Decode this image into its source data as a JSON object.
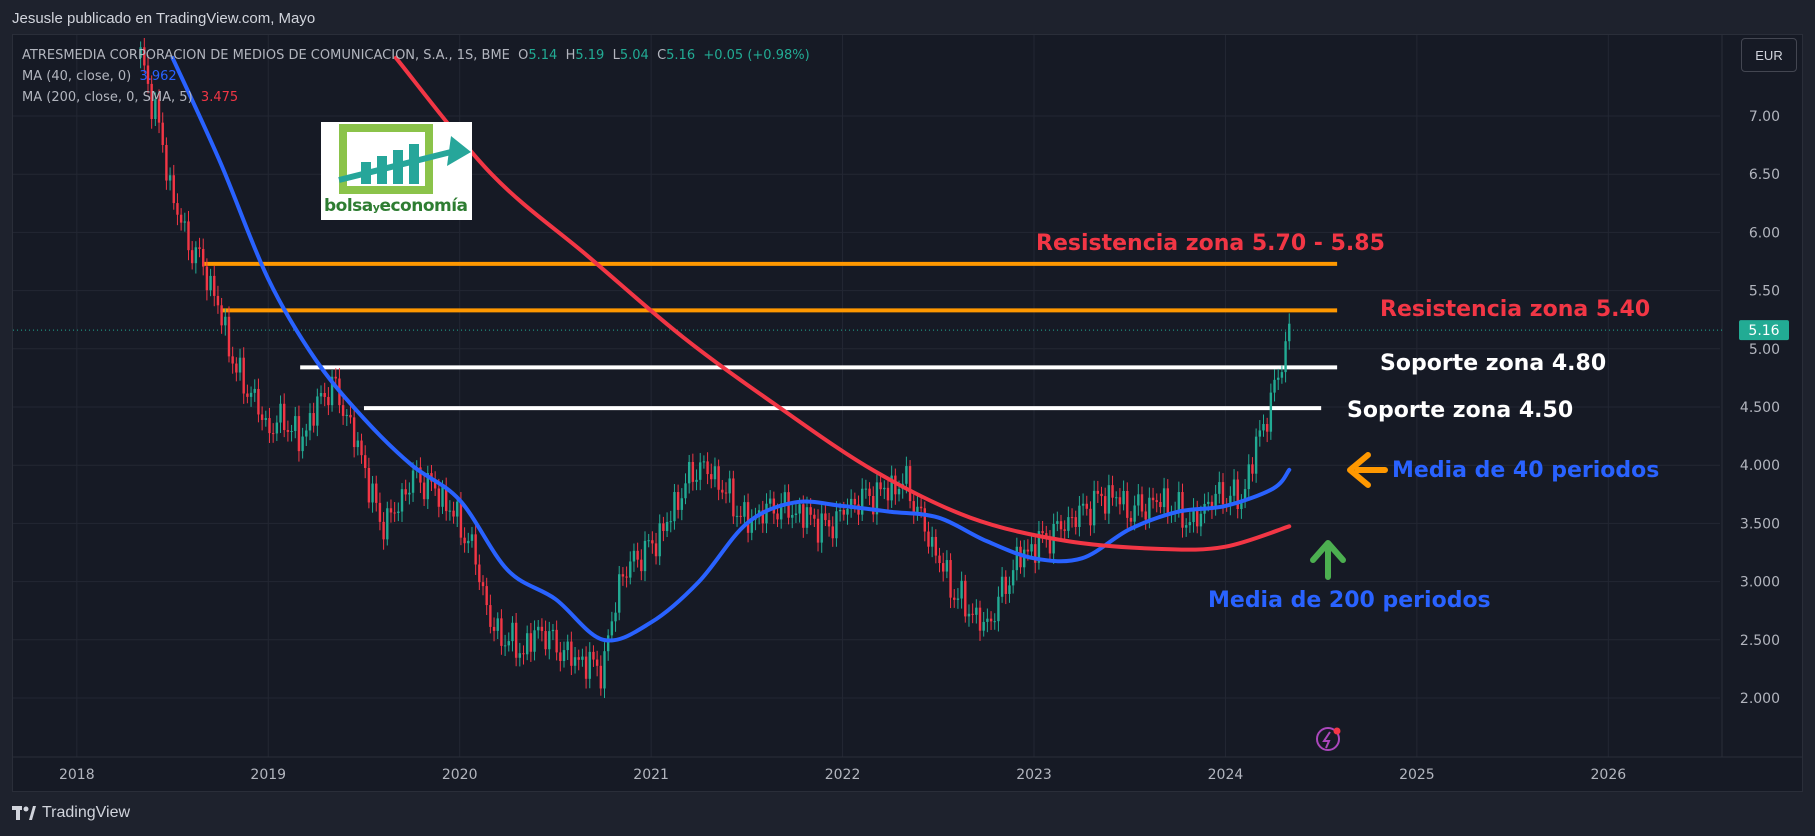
{
  "header": {
    "publisher": "Jesusle publicado en TradingView.com, Mayo"
  },
  "legend": {
    "symbol": "ATRESMEDIA CORPORACION DE MEDIOS DE COMUNICACION, S.A., 1S, BME",
    "o_label": "O",
    "o": "5.14",
    "h_label": "H",
    "h": "5.19",
    "l_label": "L",
    "l": "5.04",
    "c_label": "C",
    "c": "5.16",
    "change": "+0.05 (+0.98%)",
    "ma40_label": "MA (40, close, 0)",
    "ma40_value": "3.962",
    "ma200_label": "MA (200, close, 0, SMA, 5)",
    "ma200_value": "3.475"
  },
  "currency": "EUR",
  "price_tag": "5.16",
  "logo": {
    "part1": "bolsa",
    "part2": "y",
    "part3": "economía"
  },
  "annotations": {
    "res_585": "Resistencia zona 5.70 - 5.85",
    "res_540": "Resistencia zona 5.40",
    "sup_480": "Soporte zona 4.80",
    "sup_450": "Soporte zona 4.50",
    "ma40_note": "Media de 40 periodos",
    "ma200_note": "Media de 200 periodos"
  },
  "footer": {
    "brand": "TradingView"
  },
  "colors": {
    "bull": "#22ab94",
    "bear": "#f23645",
    "ma40": "#2962ff",
    "ma200": "#f23645",
    "levels_orange": "#ff9800",
    "levels_white": "#ffffff"
  },
  "chart_data": {
    "type": "candlestick",
    "y_ticks": [
      "7.00",
      "6.50",
      "6.00",
      "5.50",
      "5.00",
      "4.500",
      "4.000",
      "3.500",
      "3.000",
      "2.500",
      "2.000"
    ],
    "x_ticks": [
      "2018",
      "2019",
      "2020",
      "2021",
      "2022",
      "2023",
      "2024",
      "2025",
      "2026"
    ],
    "ylim": [
      1.5,
      7.5
    ],
    "xlim": [
      "2017-09",
      "2026-08"
    ],
    "grid": true,
    "hlines": [
      {
        "value": 5.73,
        "from": "2018-09",
        "to": "2024-08",
        "color": "#ff9800"
      },
      {
        "value": 5.33,
        "from": "2018-10",
        "to": "2024-08",
        "color": "#ff9800"
      },
      {
        "value": 4.84,
        "from": "2019-03",
        "to": "2024-08",
        "color": "#ffffff"
      },
      {
        "value": 4.49,
        "from": "2019-07",
        "to": "2024-07",
        "color": "#ffffff"
      }
    ],
    "price_path": [
      [
        "2018-05",
        7.5
      ],
      [
        "2018-06",
        7.0
      ],
      [
        "2018-07",
        6.3
      ],
      [
        "2018-08",
        5.9
      ],
      [
        "2018-09",
        5.7
      ],
      [
        "2018-10",
        5.3
      ],
      [
        "2018-11",
        4.8
      ],
      [
        "2018-12",
        4.6
      ],
      [
        "2019-01",
        4.3
      ],
      [
        "2019-02",
        4.4
      ],
      [
        "2019-03",
        4.2
      ],
      [
        "2019-04",
        4.5
      ],
      [
        "2019-05",
        4.7
      ],
      [
        "2019-06",
        4.4
      ],
      [
        "2019-07",
        4.0
      ],
      [
        "2019-08",
        3.5
      ],
      [
        "2019-09",
        3.6
      ],
      [
        "2019-10",
        3.9
      ],
      [
        "2019-11",
        3.85
      ],
      [
        "2019-12",
        3.7
      ],
      [
        "2020-01",
        3.5
      ],
      [
        "2020-02",
        3.2
      ],
      [
        "2020-03",
        2.6
      ],
      [
        "2020-04",
        2.5
      ],
      [
        "2020-05",
        2.4
      ],
      [
        "2020-06",
        2.6
      ],
      [
        "2020-07",
        2.45
      ],
      [
        "2020-08",
        2.35
      ],
      [
        "2020-09",
        2.3
      ],
      [
        "2020-10",
        2.25
      ],
      [
        "2020-11",
        3.0
      ],
      [
        "2020-12",
        3.2
      ],
      [
        "2021-01",
        3.3
      ],
      [
        "2021-02",
        3.5
      ],
      [
        "2021-03",
        3.8
      ],
      [
        "2021-04",
        4.0
      ],
      [
        "2021-05",
        3.9
      ],
      [
        "2021-06",
        3.7
      ],
      [
        "2021-07",
        3.5
      ],
      [
        "2021-08",
        3.6
      ],
      [
        "2021-09",
        3.65
      ],
      [
        "2021-10",
        3.6
      ],
      [
        "2021-11",
        3.55
      ],
      [
        "2021-12",
        3.45
      ],
      [
        "2022-01",
        3.6
      ],
      [
        "2022-02",
        3.7
      ],
      [
        "2022-03",
        3.75
      ],
      [
        "2022-04",
        3.8
      ],
      [
        "2022-05",
        3.85
      ],
      [
        "2022-06",
        3.5
      ],
      [
        "2022-07",
        3.2
      ],
      [
        "2022-08",
        2.9
      ],
      [
        "2022-09",
        2.75
      ],
      [
        "2022-10",
        2.6
      ],
      [
        "2022-11",
        2.9
      ],
      [
        "2022-12",
        3.2
      ],
      [
        "2023-01",
        3.3
      ],
      [
        "2023-02",
        3.4
      ],
      [
        "2023-03",
        3.5
      ],
      [
        "2023-04",
        3.6
      ],
      [
        "2023-05",
        3.7
      ],
      [
        "2023-06",
        3.75
      ],
      [
        "2023-07",
        3.6
      ],
      [
        "2023-08",
        3.65
      ],
      [
        "2023-09",
        3.7
      ],
      [
        "2023-10",
        3.6
      ],
      [
        "2023-11",
        3.5
      ],
      [
        "2023-12",
        3.7
      ],
      [
        "2024-01",
        3.75
      ],
      [
        "2024-02",
        3.7
      ],
      [
        "2024-03",
        4.2
      ],
      [
        "2024-04",
        4.6
      ],
      [
        "2024-05",
        5.16
      ]
    ],
    "series": [
      {
        "name": "MA (40, close, 0)",
        "color": "#2962ff",
        "points": [
          [
            "2018-07",
            7.5
          ],
          [
            "2018-10",
            6.6
          ],
          [
            "2019-01",
            5.6
          ],
          [
            "2019-04",
            4.9
          ],
          [
            "2019-07",
            4.4
          ],
          [
            "2019-10",
            4.0
          ],
          [
            "2020-01",
            3.7
          ],
          [
            "2020-04",
            3.1
          ],
          [
            "2020-07",
            2.85
          ],
          [
            "2020-10",
            2.5
          ],
          [
            "2021-01",
            2.65
          ],
          [
            "2021-04",
            3.0
          ],
          [
            "2021-07",
            3.5
          ],
          [
            "2021-10",
            3.68
          ],
          [
            "2022-01",
            3.65
          ],
          [
            "2022-04",
            3.6
          ],
          [
            "2022-07",
            3.55
          ],
          [
            "2022-10",
            3.35
          ],
          [
            "2023-01",
            3.2
          ],
          [
            "2023-04",
            3.2
          ],
          [
            "2023-07",
            3.45
          ],
          [
            "2023-10",
            3.6
          ],
          [
            "2024-01",
            3.65
          ],
          [
            "2024-04",
            3.8
          ],
          [
            "2024-05",
            3.96
          ]
        ]
      },
      {
        "name": "MA (200, close, 0, SMA, 5)",
        "color": "#f23645",
        "points": [
          [
            "2019-09",
            7.5
          ],
          [
            "2020-03",
            6.5
          ],
          [
            "2020-09",
            5.8
          ],
          [
            "2021-03",
            5.1
          ],
          [
            "2021-09",
            4.5
          ],
          [
            "2022-03",
            3.95
          ],
          [
            "2022-09",
            3.55
          ],
          [
            "2023-03",
            3.35
          ],
          [
            "2023-09",
            3.28
          ],
          [
            "2024-01",
            3.3
          ],
          [
            "2024-05",
            3.475
          ]
        ]
      }
    ]
  }
}
